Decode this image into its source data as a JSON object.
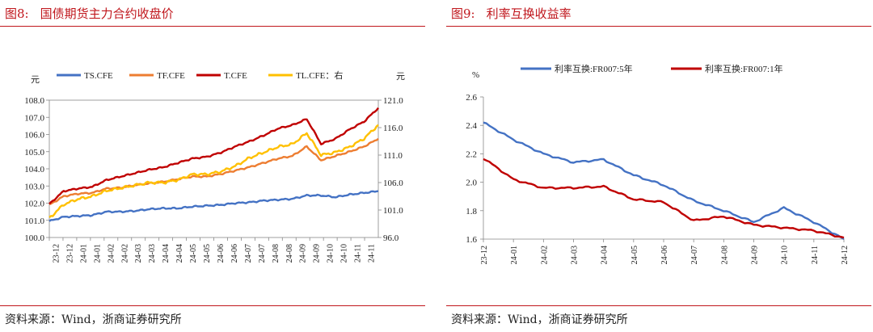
{
  "left": {
    "figure_label": "图8:",
    "title": "国债期货主力合约收盘价",
    "source": "资料来源：Wind，浙商证券研究所",
    "left_unit": "元",
    "right_unit": "元",
    "legend": [
      "TS.CFE",
      "TF.CFE",
      "T.CFE",
      "TL.CFE：右"
    ]
  },
  "right": {
    "figure_label": "图9:",
    "title": "利率互换收益率",
    "source": "资料来源：Wind，浙商证券研究所",
    "unit": "%",
    "legend": [
      "利率互换:FR007:5年",
      "利率互换:FR007:1年"
    ]
  },
  "chart_data": [
    {
      "type": "line",
      "title": "国债期货主力合约收盘价",
      "x": [
        "23-12",
        "23-12",
        "24-01",
        "24-01",
        "24-02",
        "24-02",
        "24-03",
        "24-03",
        "24-04",
        "24-04",
        "24-05",
        "24-05",
        "24-06",
        "24-06",
        "24-07",
        "24-07",
        "24-08",
        "24-08",
        "24-09",
        "24-09",
        "24-10",
        "24-10",
        "24-11",
        "24-11"
      ],
      "ylim_left": [
        100.0,
        108.0
      ],
      "yticks_left": [
        "100.0",
        "101.0",
        "102.0",
        "103.0",
        "104.0",
        "105.0",
        "106.0",
        "107.0",
        "108.0"
      ],
      "ylim_right": [
        96.0,
        121.0
      ],
      "yticks_right": [
        "96.0",
        "101.0",
        "106.0",
        "111.0",
        "116.0",
        "121.0"
      ],
      "ylabel_left": "元",
      "ylabel_right": "元",
      "legend_position": "top",
      "series": [
        {
          "name": "TS.CFE",
          "axis": "left",
          "color": "#4472c4",
          "values": [
            100.95,
            101.2,
            101.25,
            101.3,
            101.5,
            101.5,
            101.55,
            101.65,
            101.7,
            101.7,
            101.8,
            101.85,
            101.9,
            102.0,
            102.05,
            102.15,
            102.2,
            102.25,
            102.45,
            102.45,
            102.35,
            102.5,
            102.6,
            102.7
          ]
        },
        {
          "name": "TF.CFE",
          "axis": "left",
          "color": "#ed7d31",
          "values": [
            101.9,
            102.4,
            102.55,
            102.6,
            102.85,
            102.9,
            103.05,
            103.15,
            103.25,
            103.4,
            103.55,
            103.55,
            103.7,
            103.9,
            104.1,
            104.35,
            104.6,
            104.75,
            105.3,
            104.5,
            104.75,
            105.0,
            105.3,
            105.75
          ]
        },
        {
          "name": "T.CFE",
          "axis": "left",
          "color": "#c00000",
          "values": [
            101.95,
            102.7,
            102.85,
            102.95,
            103.35,
            103.55,
            103.75,
            103.95,
            104.1,
            104.35,
            104.6,
            104.7,
            104.95,
            105.3,
            105.6,
            105.95,
            106.35,
            106.55,
            106.9,
            105.45,
            105.75,
            106.3,
            106.75,
            107.55
          ]
        },
        {
          "name": "TL.CFE：右",
          "axis": "right",
          "color": "#ffc000",
          "values": [
            99.5,
            102.0,
            103.0,
            103.5,
            104.5,
            105.0,
            105.5,
            106.0,
            106.0,
            106.5,
            107.5,
            107.5,
            108.0,
            109.0,
            110.5,
            111.5,
            112.5,
            113.0,
            115.0,
            111.0,
            111.5,
            112.5,
            114.0,
            116.5
          ]
        }
      ]
    },
    {
      "type": "line",
      "title": "利率互换收益率",
      "x": [
        "23-12",
        "24-01",
        "24-02",
        "24-03",
        "24-04",
        "24-05",
        "24-06",
        "24-07",
        "24-08",
        "24-09",
        "24-10",
        "24-11",
        "24-12"
      ],
      "ylim": [
        1.6,
        2.6
      ],
      "yticks": [
        "1.6",
        "1.8",
        "2.0",
        "2.2",
        "2.4",
        "2.6"
      ],
      "ylabel": "%",
      "legend_position": "top",
      "series": [
        {
          "name": "利率互换:FR007:5年",
          "color": "#4472c4",
          "values": [
            2.42,
            2.3,
            2.2,
            2.14,
            2.16,
            2.05,
            1.98,
            1.87,
            1.8,
            1.72,
            1.82,
            1.72,
            1.6
          ]
        },
        {
          "name": "利率互换:FR007:1年",
          "color": "#c00000",
          "values": [
            2.17,
            2.02,
            1.96,
            1.96,
            1.97,
            1.88,
            1.86,
            1.73,
            1.76,
            1.7,
            1.68,
            1.66,
            1.61
          ]
        }
      ]
    }
  ]
}
